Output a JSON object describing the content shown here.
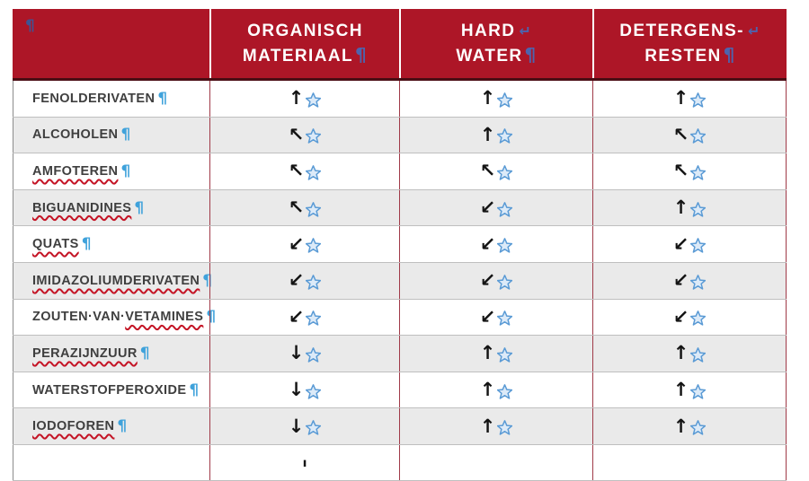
{
  "table": {
    "header": {
      "corner_pilcrow": "¶",
      "columns": [
        {
          "line1": "ORGANISCH",
          "line2": "MATERIAAL",
          "has_line_break_mark": false
        },
        {
          "line1": "HARD",
          "line2": "WATER",
          "has_line_break_mark": true
        },
        {
          "line1": "DETERGENS-",
          "line2": "RESTEN",
          "has_line_break_mark": true
        }
      ]
    },
    "rows": [
      {
        "label_parts": [
          {
            "text": "FENOLDERIVATEN",
            "misspelled": false
          }
        ],
        "cells": [
          "up",
          "up",
          "up"
        ]
      },
      {
        "label_parts": [
          {
            "text": "ALCOHOLEN",
            "misspelled": false
          }
        ],
        "cells": [
          "up-left",
          "up",
          "up-left"
        ]
      },
      {
        "label_parts": [
          {
            "text": "AMFOTEREN",
            "misspelled": true
          }
        ],
        "cells": [
          "up-left",
          "up-left",
          "up-left"
        ]
      },
      {
        "label_parts": [
          {
            "text": "BIGUANIDINES",
            "misspelled": true
          }
        ],
        "cells": [
          "up-left",
          "down-left",
          "up"
        ]
      },
      {
        "label_parts": [
          {
            "text": "QUATS",
            "misspelled": true
          }
        ],
        "cells": [
          "down-left",
          "down-left",
          "down-left"
        ]
      },
      {
        "label_parts": [
          {
            "text": "IMIDAZOLIUMDERIVATEN",
            "misspelled": true
          }
        ],
        "cells": [
          "down-left",
          "down-left",
          "down-left"
        ]
      },
      {
        "label_parts": [
          {
            "text": "ZOUTEN·VAN·",
            "misspelled": false
          },
          {
            "text": "VETAMINES",
            "misspelled": true
          }
        ],
        "cells": [
          "down-left",
          "down-left",
          "down-left"
        ]
      },
      {
        "label_parts": [
          {
            "text": "PERAZIJNZUUR",
            "misspelled": true
          }
        ],
        "cells": [
          "down",
          "up",
          "up"
        ]
      },
      {
        "label_parts": [
          {
            "text": "WATERSTOFPEROXIDE",
            "misspelled": false
          }
        ],
        "cells": [
          "down",
          "up",
          "up"
        ]
      },
      {
        "label_parts": [
          {
            "text": "IODOFOREN",
            "misspelled": true
          }
        ],
        "cells": [
          "down",
          "up",
          "up"
        ]
      }
    ],
    "partial_row": {
      "cells": [
        "down",
        null,
        null
      ]
    },
    "icons": {
      "up": "↑",
      "up-left": "↖",
      "down-left": "↙",
      "down": "↓",
      "pilcrow": "¶",
      "line-break": "↵"
    },
    "colors": {
      "header_bg": "#AD1627",
      "header_text": "#FFFFFF",
      "header_pilcrow": "#4D64AE",
      "body_pilcrow": "#3FA2DB",
      "row_alt_bg": "#EAEAEA",
      "grid_vertical": "#A03A48",
      "grid_horizontal": "#BFBFBF",
      "label_text": "#3F3F3F",
      "arrow": "#141414",
      "star_stroke": "#5B9BD5",
      "star_fill": "#DCEAF8",
      "squiggle": "#C41425"
    }
  }
}
